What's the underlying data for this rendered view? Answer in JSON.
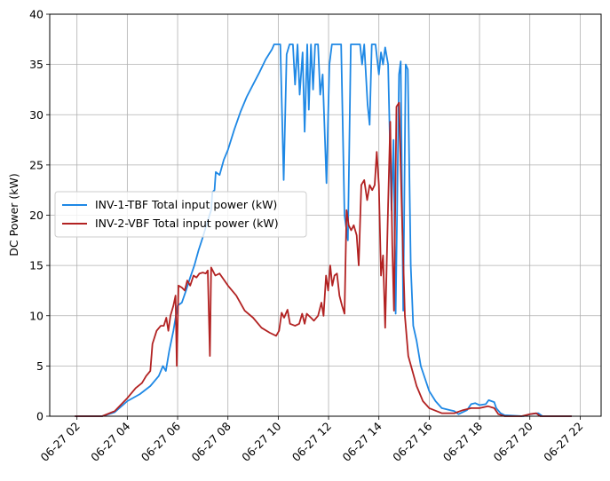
{
  "chart_data": {
    "type": "line",
    "title": "",
    "xlabel": "",
    "ylabel": "DC Power (kW)",
    "ylim": [
      0,
      40
    ],
    "xlim": [
      "2024-06-27 00:55",
      "2024-06-27 22:50"
    ],
    "grid": true,
    "legend_position": "center-left",
    "x_tick_labels": [
      "06-27 02",
      "06-27 04",
      "06-27 06",
      "06-27 08",
      "06-27 10",
      "06-27 12",
      "06-27 14",
      "06-27 16",
      "06-27 18",
      "06-27 20",
      "06-27 22"
    ],
    "x_ticks": [
      "2024-06-27 02:00",
      "2024-06-27 04:00",
      "2024-06-27 06:00",
      "2024-06-27 08:00",
      "2024-06-27 10:00",
      "2024-06-27 12:00",
      "2024-06-27 14:00",
      "2024-06-27 16:00",
      "2024-06-27 18:00",
      "2024-06-27 20:00",
      "2024-06-27 22:00"
    ],
    "y_ticks": [
      0,
      5,
      10,
      15,
      20,
      25,
      30,
      35,
      40
    ],
    "series": [
      {
        "name": "INV-1-TBF Total input power (kW)",
        "color": "#1e88e5",
        "points": [
          [
            "2024-06-27 01:55",
            0
          ],
          [
            "2024-06-27 03:00",
            0
          ],
          [
            "2024-06-27 03:30",
            0.4
          ],
          [
            "2024-06-27 04:00",
            1.5
          ],
          [
            "2024-06-27 04:30",
            2.2
          ],
          [
            "2024-06-27 04:55",
            3.0
          ],
          [
            "2024-06-27 05:15",
            4.0
          ],
          [
            "2024-06-27 05:25",
            5.0
          ],
          [
            "2024-06-27 05:32",
            4.5
          ],
          [
            "2024-06-27 05:40",
            6.5
          ],
          [
            "2024-06-27 05:50",
            8.5
          ],
          [
            "2024-06-27 06:00",
            11.0
          ],
          [
            "2024-06-27 06:10",
            11.3
          ],
          [
            "2024-06-27 06:20",
            12.5
          ],
          [
            "2024-06-27 06:30",
            13.8
          ],
          [
            "2024-06-27 06:40",
            15.0
          ],
          [
            "2024-06-27 06:50",
            16.5
          ],
          [
            "2024-06-27 07:00",
            17.8
          ],
          [
            "2024-06-27 07:10",
            19.2
          ],
          [
            "2024-06-27 07:20",
            20.5
          ],
          [
            "2024-06-27 07:23",
            22.3
          ],
          [
            "2024-06-27 07:28",
            22.5
          ],
          [
            "2024-06-27 07:31",
            24.3
          ],
          [
            "2024-06-27 07:40",
            24.0
          ],
          [
            "2024-06-27 07:50",
            25.5
          ],
          [
            "2024-06-27 08:00",
            26.5
          ],
          [
            "2024-06-27 08:15",
            28.5
          ],
          [
            "2024-06-27 08:30",
            30.3
          ],
          [
            "2024-06-27 08:45",
            31.8
          ],
          [
            "2024-06-27 09:00",
            33.0
          ],
          [
            "2024-06-27 09:15",
            34.2
          ],
          [
            "2024-06-27 09:30",
            35.5
          ],
          [
            "2024-06-27 09:45",
            36.5
          ],
          [
            "2024-06-27 09:50",
            37.0
          ],
          [
            "2024-06-27 10:05",
            37.0
          ],
          [
            "2024-06-27 10:13",
            23.5
          ],
          [
            "2024-06-27 10:20",
            36.0
          ],
          [
            "2024-06-27 10:27",
            37.0
          ],
          [
            "2024-06-27 10:35",
            37.0
          ],
          [
            "2024-06-27 10:40",
            33.0
          ],
          [
            "2024-06-27 10:46",
            37.0
          ],
          [
            "2024-06-27 10:51",
            32.0
          ],
          [
            "2024-06-27 10:58",
            36.2
          ],
          [
            "2024-06-27 11:03",
            28.3
          ],
          [
            "2024-06-27 11:09",
            37.0
          ],
          [
            "2024-06-27 11:13",
            30.5
          ],
          [
            "2024-06-27 11:18",
            37.0
          ],
          [
            "2024-06-27 11:23",
            32.5
          ],
          [
            "2024-06-27 11:28",
            37.0
          ],
          [
            "2024-06-27 11:35",
            37.0
          ],
          [
            "2024-06-27 11:40",
            32.0
          ],
          [
            "2024-06-27 11:46",
            34.0
          ],
          [
            "2024-06-27 11:55",
            23.2
          ],
          [
            "2024-06-27 12:02",
            35.0
          ],
          [
            "2024-06-27 12:08",
            37.0
          ],
          [
            "2024-06-27 12:30",
            37.0
          ],
          [
            "2024-06-27 12:38",
            20.0
          ],
          [
            "2024-06-27 12:46",
            17.5
          ],
          [
            "2024-06-27 12:53",
            37.0
          ],
          [
            "2024-06-27 13:15",
            37.0
          ],
          [
            "2024-06-27 13:20",
            35.0
          ],
          [
            "2024-06-27 13:25",
            37.0
          ],
          [
            "2024-06-27 13:33",
            31.0
          ],
          [
            "2024-06-27 13:38",
            29.0
          ],
          [
            "2024-06-27 13:43",
            37.0
          ],
          [
            "2024-06-27 13:52",
            37.0
          ],
          [
            "2024-06-27 14:00",
            34.0
          ],
          [
            "2024-06-27 14:05",
            36.2
          ],
          [
            "2024-06-27 14:10",
            35.0
          ],
          [
            "2024-06-27 14:15",
            36.7
          ],
          [
            "2024-06-27 14:22",
            35.0
          ],
          [
            "2024-06-27 14:30",
            20.5
          ],
          [
            "2024-06-27 14:35",
            27.5
          ],
          [
            "2024-06-27 14:40",
            10.2
          ],
          [
            "2024-06-27 14:48",
            34.0
          ],
          [
            "2024-06-27 14:52",
            35.3
          ],
          [
            "2024-06-27 14:58",
            10.5
          ],
          [
            "2024-06-27 15:04",
            35.0
          ],
          [
            "2024-06-27 15:09",
            34.5
          ],
          [
            "2024-06-27 15:16",
            15.0
          ],
          [
            "2024-06-27 15:22",
            9.0
          ],
          [
            "2024-06-27 15:30",
            7.5
          ],
          [
            "2024-06-27 15:40",
            5.0
          ],
          [
            "2024-06-27 16:00",
            2.5
          ],
          [
            "2024-06-27 16:15",
            1.5
          ],
          [
            "2024-06-27 16:30",
            0.8
          ],
          [
            "2024-06-27 17:00",
            0.5
          ],
          [
            "2024-06-27 17:10",
            0.2
          ],
          [
            "2024-06-27 17:30",
            0.6
          ],
          [
            "2024-06-27 17:40",
            1.2
          ],
          [
            "2024-06-27 17:50",
            1.3
          ],
          [
            "2024-06-27 18:00",
            1.1
          ],
          [
            "2024-06-27 18:15",
            1.2
          ],
          [
            "2024-06-27 18:22",
            1.6
          ],
          [
            "2024-06-27 18:35",
            1.4
          ],
          [
            "2024-06-27 18:40",
            0.8
          ],
          [
            "2024-06-27 18:50",
            0.3
          ],
          [
            "2024-06-27 19:00",
            0.1
          ],
          [
            "2024-06-27 19:45",
            0
          ],
          [
            "2024-06-27 20:00",
            0.2
          ],
          [
            "2024-06-27 20:20",
            0.3
          ],
          [
            "2024-06-27 20:30",
            0
          ],
          [
            "2024-06-27 21:40",
            0
          ]
        ]
      },
      {
        "name": "INV-2-VBF Total input power (kW)",
        "color": "#b22222",
        "points": [
          [
            "2024-06-27 01:55",
            0
          ],
          [
            "2024-06-27 03:00",
            0
          ],
          [
            "2024-06-27 03:30",
            0.5
          ],
          [
            "2024-06-27 04:00",
            1.8
          ],
          [
            "2024-06-27 04:20",
            2.8
          ],
          [
            "2024-06-27 04:35",
            3.3
          ],
          [
            "2024-06-27 04:45",
            4.0
          ],
          [
            "2024-06-27 04:55",
            4.5
          ],
          [
            "2024-06-27 05:00",
            7.2
          ],
          [
            "2024-06-27 05:10",
            8.5
          ],
          [
            "2024-06-27 05:20",
            9.0
          ],
          [
            "2024-06-27 05:27",
            9.0
          ],
          [
            "2024-06-27 05:33",
            9.8
          ],
          [
            "2024-06-27 05:38",
            8.5
          ],
          [
            "2024-06-27 05:43",
            10.0
          ],
          [
            "2024-06-27 05:50",
            11.0
          ],
          [
            "2024-06-27 05:55",
            12.0
          ],
          [
            "2024-06-27 05:58",
            5.0
          ],
          [
            "2024-06-27 06:02",
            13.0
          ],
          [
            "2024-06-27 06:10",
            12.8
          ],
          [
            "2024-06-27 06:17",
            12.5
          ],
          [
            "2024-06-27 06:23",
            13.5
          ],
          [
            "2024-06-27 06:30",
            13.0
          ],
          [
            "2024-06-27 06:38",
            14.0
          ],
          [
            "2024-06-27 06:45",
            13.8
          ],
          [
            "2024-06-27 06:52",
            14.2
          ],
          [
            "2024-06-27 07:00",
            14.3
          ],
          [
            "2024-06-27 07:07",
            14.2
          ],
          [
            "2024-06-27 07:12",
            14.5
          ],
          [
            "2024-06-27 07:17",
            6.0
          ],
          [
            "2024-06-27 07:20",
            14.8
          ],
          [
            "2024-06-27 07:30",
            14.0
          ],
          [
            "2024-06-27 07:40",
            14.2
          ],
          [
            "2024-06-27 08:00",
            13.0
          ],
          [
            "2024-06-27 08:20",
            12.0
          ],
          [
            "2024-06-27 08:40",
            10.5
          ],
          [
            "2024-06-27 09:00",
            9.8
          ],
          [
            "2024-06-27 09:20",
            8.8
          ],
          [
            "2024-06-27 09:40",
            8.3
          ],
          [
            "2024-06-27 09:55",
            8.0
          ],
          [
            "2024-06-27 10:02",
            8.5
          ],
          [
            "2024-06-27 10:08",
            10.3
          ],
          [
            "2024-06-27 10:14",
            9.8
          ],
          [
            "2024-06-27 10:22",
            10.6
          ],
          [
            "2024-06-27 10:28",
            9.2
          ],
          [
            "2024-06-27 10:40",
            9.0
          ],
          [
            "2024-06-27 10:50",
            9.2
          ],
          [
            "2024-06-27 10:57",
            10.2
          ],
          [
            "2024-06-27 11:03",
            9.2
          ],
          [
            "2024-06-27 11:08",
            10.2
          ],
          [
            "2024-06-27 11:18",
            9.8
          ],
          [
            "2024-06-27 11:25",
            9.5
          ],
          [
            "2024-06-27 11:35",
            10.0
          ],
          [
            "2024-06-27 11:43",
            11.3
          ],
          [
            "2024-06-27 11:48",
            10.0
          ],
          [
            "2024-06-27 11:54",
            14.0
          ],
          [
            "2024-06-27 11:59",
            12.5
          ],
          [
            "2024-06-27 12:04",
            15.0
          ],
          [
            "2024-06-27 12:09",
            13.0
          ],
          [
            "2024-06-27 12:14",
            14.0
          ],
          [
            "2024-06-27 12:20",
            14.2
          ],
          [
            "2024-06-27 12:26",
            12.0
          ],
          [
            "2024-06-27 12:32",
            11.0
          ],
          [
            "2024-06-27 12:38",
            10.2
          ],
          [
            "2024-06-27 12:43",
            20.5
          ],
          [
            "2024-06-27 12:48",
            19.0
          ],
          [
            "2024-06-27 12:54",
            18.5
          ],
          [
            "2024-06-27 13:00",
            19.0
          ],
          [
            "2024-06-27 13:07",
            18.0
          ],
          [
            "2024-06-27 13:12",
            15.0
          ],
          [
            "2024-06-27 13:18",
            23.0
          ],
          [
            "2024-06-27 13:25",
            23.5
          ],
          [
            "2024-06-27 13:32",
            21.5
          ],
          [
            "2024-06-27 13:38",
            23.0
          ],
          [
            "2024-06-27 13:44",
            22.5
          ],
          [
            "2024-06-27 13:50",
            23.0
          ],
          [
            "2024-06-27 13:55",
            26.3
          ],
          [
            "2024-06-27 14:00",
            23.0
          ],
          [
            "2024-06-27 14:05",
            14.0
          ],
          [
            "2024-06-27 14:10",
            16.0
          ],
          [
            "2024-06-27 14:15",
            8.8
          ],
          [
            "2024-06-27 14:22",
            21.0
          ],
          [
            "2024-06-27 14:27",
            29.3
          ],
          [
            "2024-06-27 14:32",
            17.0
          ],
          [
            "2024-06-27 14:36",
            10.5
          ],
          [
            "2024-06-27 14:42",
            30.8
          ],
          [
            "2024-06-27 14:48",
            31.2
          ],
          [
            "2024-06-27 14:55",
            20.0
          ],
          [
            "2024-06-27 15:02",
            10.0
          ],
          [
            "2024-06-27 15:10",
            6.0
          ],
          [
            "2024-06-27 15:20",
            4.5
          ],
          [
            "2024-06-27 15:30",
            3.0
          ],
          [
            "2024-06-27 15:45",
            1.5
          ],
          [
            "2024-06-27 16:00",
            0.8
          ],
          [
            "2024-06-27 16:30",
            0.3
          ],
          [
            "2024-06-27 17:00",
            0.3
          ],
          [
            "2024-06-27 17:20",
            0.6
          ],
          [
            "2024-06-27 17:40",
            0.8
          ],
          [
            "2024-06-27 18:00",
            0.8
          ],
          [
            "2024-06-27 18:20",
            1.0
          ],
          [
            "2024-06-27 18:35",
            0.8
          ],
          [
            "2024-06-27 18:45",
            0.2
          ],
          [
            "2024-06-27 19:00",
            0
          ],
          [
            "2024-06-27 19:40",
            0
          ],
          [
            "2024-06-27 20:00",
            0.2
          ],
          [
            "2024-06-27 20:15",
            0.3
          ],
          [
            "2024-06-27 20:25",
            0
          ],
          [
            "2024-06-27 21:40",
            0
          ]
        ]
      }
    ]
  }
}
